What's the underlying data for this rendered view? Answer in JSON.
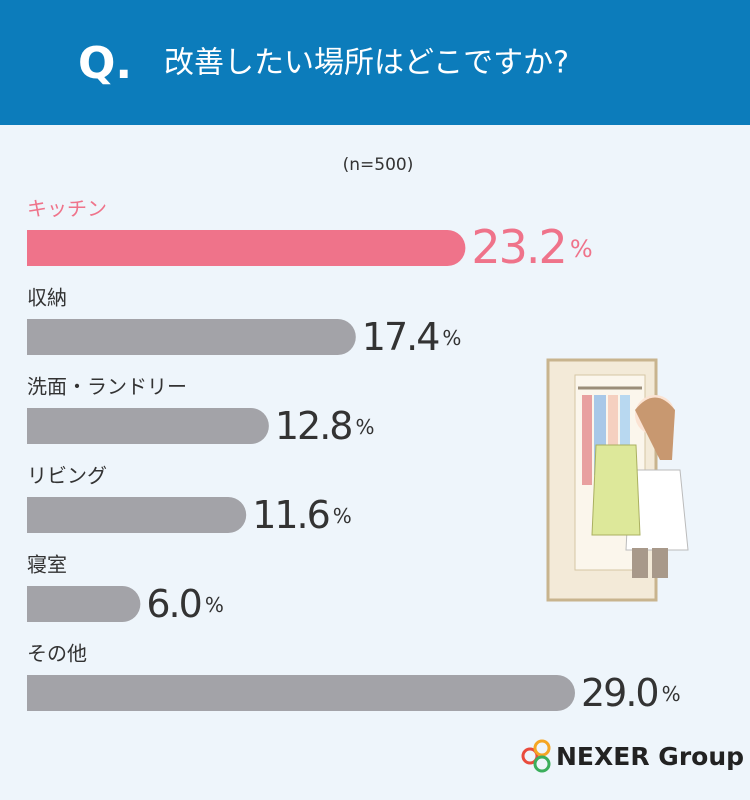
{
  "chart_data": {
    "type": "bar",
    "title_mark": "Q.",
    "title": "改善したい場所はどこですか?",
    "subtitle": "(n=500)",
    "categories": [
      "キッチン",
      "収納",
      "洗面・ランドリー",
      "リビング",
      "寝室",
      "その他"
    ],
    "values": [
      23.2,
      17.4,
      12.8,
      11.6,
      6.0,
      29.0
    ],
    "value_labels": [
      "23.2",
      "17.4",
      "12.8",
      "11.6",
      "6.0",
      "29.0"
    ],
    "value_unit": "%",
    "colors": [
      "#ef738a",
      "#a3a3a8",
      "#a3a3a8",
      "#a3a3a8",
      "#a3a3a8",
      "#a3a3a8"
    ],
    "logo": "NEXER Group"
  }
}
